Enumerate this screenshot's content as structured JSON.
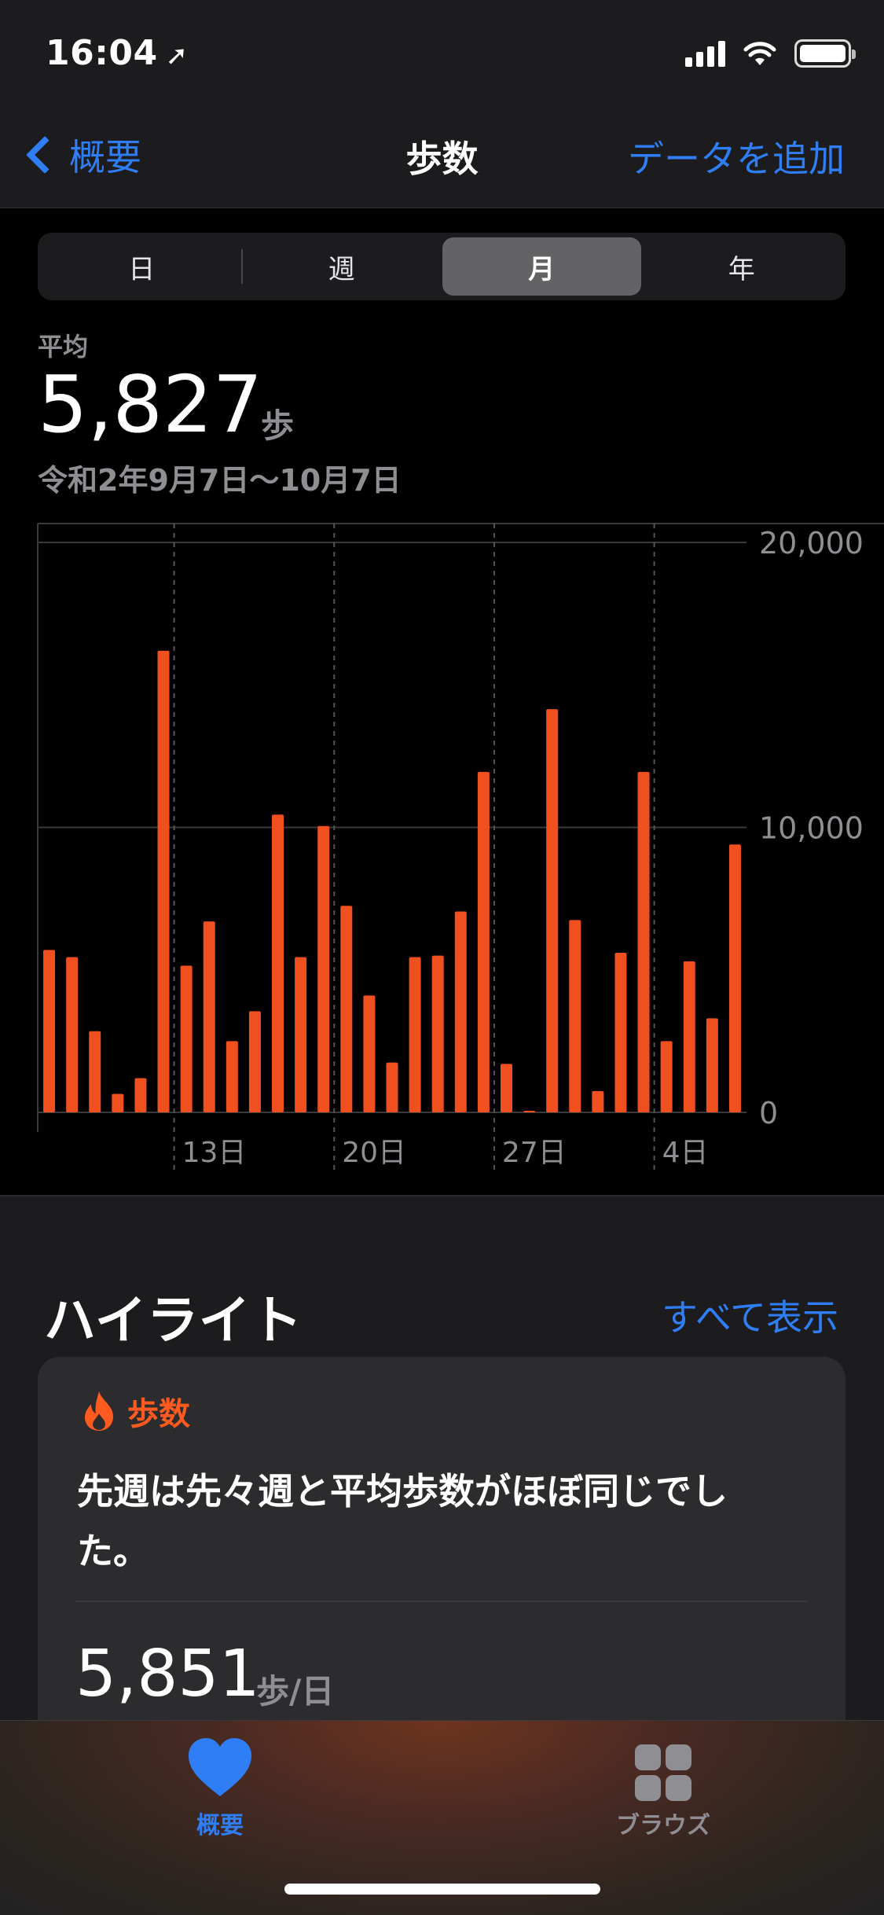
{
  "status_bar": {
    "time": "16:04"
  },
  "nav": {
    "back_label": "概要",
    "title": "歩数",
    "add_label": "データを追加"
  },
  "segments": [
    "日",
    "週",
    "月",
    "年"
  ],
  "segments_selected": "月",
  "summary": {
    "label": "平均",
    "value": "5,827",
    "unit": "歩",
    "date_range": "令和2年9月7日〜10月7日"
  },
  "colors": {
    "accent": "#2f7ef5",
    "bars": "#f0501f",
    "highlight": "#ff5a1f"
  },
  "chart_data": {
    "type": "bar",
    "title": "",
    "xlabel": "",
    "ylabel": "",
    "ylim": [
      0,
      20000
    ],
    "y_ticks": [
      "20,000",
      "10,000",
      "0"
    ],
    "x_ticks": [
      "13日",
      "20日",
      "27日",
      "4日"
    ],
    "categories": [
      "9/7",
      "9/8",
      "9/9",
      "9/10",
      "9/11",
      "9/12",
      "9/13",
      "9/14",
      "9/15",
      "9/16",
      "9/17",
      "9/18",
      "9/19",
      "9/20",
      "9/21",
      "9/22",
      "9/23",
      "9/24",
      "9/25",
      "9/26",
      "9/27",
      "9/28",
      "9/29",
      "9/30",
      "10/1",
      "10/2",
      "10/3",
      "10/4",
      "10/5",
      "10/6",
      "10/7"
    ],
    "values": [
      5700,
      5450,
      2850,
      650,
      1200,
      16200,
      5150,
      6700,
      2500,
      3550,
      10450,
      5450,
      10050,
      7250,
      4100,
      1750,
      5450,
      5500,
      7050,
      11950,
      1700,
      50,
      14150,
      6750,
      750,
      5600,
      11950,
      2500,
      5300,
      3300,
      9400
    ],
    "grid": true,
    "legend": "none"
  },
  "highlights": {
    "title": "ハイライト",
    "show_all": "すべて表示",
    "card": {
      "category": "歩数",
      "text": "先週は先々週と平均歩数がほぼ同じでした。",
      "value": "5,851",
      "unit": "歩/日"
    }
  },
  "tabbar": {
    "summary": "概要",
    "browse": "ブラウズ"
  },
  "icons": [
    "location-arrow-icon",
    "signal-icon",
    "wifi-icon",
    "battery-icon",
    "chevron-left-icon",
    "flame-icon",
    "heart-icon",
    "grid-icon"
  ]
}
